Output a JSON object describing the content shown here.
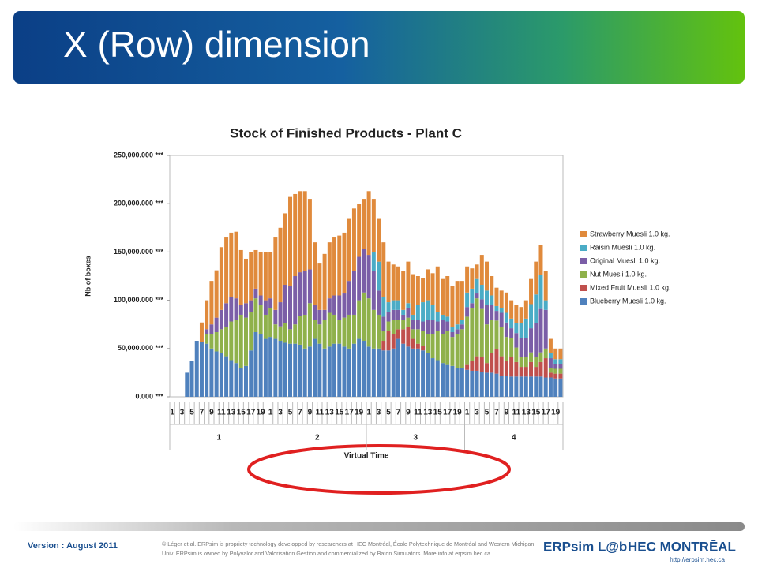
{
  "slide": {
    "title": "X (Row) dimension",
    "version": "Version : August 2011",
    "copyright": [
      "© Léger et al. ERPsim is propriety technology developped by researchers at HEC Montréal, École Polytechnique de Montréal and Western Michigan",
      "Univ. ERPsim is owned by Polyvalor and Valorisation Gestion and commercialized by Baton Simulators. More info at erpsim.hec.ca"
    ],
    "logo_left": "ERPsim L@b",
    "logo_right": "HEC MONTRĒAL",
    "url": "http://erpsim.hec.ca"
  },
  "chart_data": {
    "type": "stacked_bar",
    "title": "Stock of Finished Products - Plant C",
    "x_label": "Virtual Time",
    "y_label": "Nb of boxes",
    "categories": [
      "1",
      null,
      "3",
      null,
      "5",
      null,
      "7",
      null,
      "9",
      null,
      "11",
      null,
      "13",
      null,
      "15",
      null,
      "17",
      null,
      "19",
      null,
      "1",
      null,
      "3",
      null,
      "5",
      null,
      "7",
      null,
      "9",
      null,
      "11",
      null,
      "13",
      null,
      "15",
      null,
      "17",
      null,
      "19",
      null,
      "1",
      null,
      "3",
      null,
      "5",
      null,
      "7",
      null,
      "9",
      null,
      "11",
      null,
      "13",
      null,
      "15",
      null,
      "17",
      null,
      "19",
      null,
      "1",
      null,
      "3",
      null,
      "5",
      null,
      "7",
      null,
      "9",
      null,
      "11",
      null,
      "13",
      null,
      "15",
      null,
      "17",
      null,
      "19",
      null
    ],
    "groups": [
      "1",
      "2",
      "3",
      "4"
    ],
    "ylim": [
      0,
      250000
    ],
    "yticks": [
      {
        "value": 0,
        "label": "0.000 ***"
      },
      {
        "value": 50000,
        "label": "50,000.000 ***"
      },
      {
        "value": 100000,
        "label": "100,000.000 ***"
      },
      {
        "value": 150000,
        "label": "150,000.000 ***"
      },
      {
        "value": 200000,
        "label": "200,000.000 ***"
      },
      {
        "value": 250000,
        "label": "250,000.000 ***"
      }
    ],
    "grid": false,
    "legend": "right",
    "series": [
      {
        "name": "Blueberry Muesli 1.0 kg.",
        "color": "#4f81bd",
        "values": [
          0,
          0,
          0,
          25000,
          37000,
          58000,
          57000,
          55000,
          50000,
          47000,
          45000,
          42000,
          38000,
          35000,
          30000,
          32000,
          48000,
          67000,
          65000,
          60000,
          62000,
          60000,
          58000,
          56000,
          55000,
          55000,
          54000,
          50000,
          52000,
          60000,
          55000,
          50000,
          52000,
          55000,
          55000,
          52000,
          50000,
          55000,
          60000,
          58000,
          52000,
          50000,
          50000,
          48000,
          48000,
          50000,
          60000,
          55000,
          52000,
          50000,
          50000,
          48000,
          45000,
          40000,
          38000,
          35000,
          33000,
          32000,
          30000,
          30000,
          28000,
          27000,
          27000,
          26000,
          25000,
          25000,
          24000,
          22000,
          22000,
          21000,
          21000,
          21000,
          21000,
          21000,
          21000,
          21000,
          20000,
          20000,
          19000,
          19000
        ]
      },
      {
        "name": "Mixed Fruit Muesli 1.0 kg.",
        "color": "#c0504d",
        "values": [
          0,
          0,
          0,
          0,
          0,
          0,
          0,
          0,
          0,
          0,
          0,
          0,
          0,
          0,
          0,
          0,
          0,
          0,
          0,
          0,
          0,
          0,
          0,
          0,
          0,
          0,
          0,
          0,
          0,
          0,
          0,
          0,
          0,
          0,
          0,
          0,
          0,
          0,
          0,
          0,
          0,
          0,
          0,
          10000,
          20000,
          15000,
          10000,
          15000,
          20000,
          10000,
          5000,
          5000,
          0,
          0,
          0,
          0,
          0,
          0,
          0,
          0,
          5000,
          10000,
          15000,
          15000,
          10000,
          20000,
          25000,
          20000,
          15000,
          20000,
          15000,
          10000,
          10000,
          15000,
          10000,
          15000,
          20000,
          5000,
          5000,
          5000
        ]
      },
      {
        "name": "Nut Muesli 1.0 kg.",
        "color": "#8fb14b",
        "values": [
          0,
          0,
          0,
          0,
          0,
          0,
          0,
          10000,
          15000,
          20000,
          25000,
          30000,
          40000,
          45000,
          55000,
          50000,
          40000,
          35000,
          30000,
          25000,
          30000,
          15000,
          15000,
          20000,
          15000,
          20000,
          30000,
          35000,
          45000,
          20000,
          20000,
          30000,
          35000,
          30000,
          25000,
          30000,
          35000,
          30000,
          40000,
          50000,
          50000,
          40000,
          35000,
          10000,
          10000,
          15000,
          10000,
          10000,
          10000,
          10000,
          15000,
          15000,
          20000,
          25000,
          30000,
          30000,
          35000,
          30000,
          35000,
          40000,
          50000,
          55000,
          60000,
          50000,
          40000,
          35000,
          30000,
          30000,
          25000,
          20000,
          15000,
          10000,
          10000,
          10000,
          10000,
          10000,
          10000,
          5000,
          5000,
          5000
        ]
      },
      {
        "name": "Original Muesli 1.0 kg.",
        "color": "#7b5ea7",
        "values": [
          0,
          0,
          0,
          0,
          0,
          0,
          0,
          5000,
          10000,
          15000,
          20000,
          25000,
          25000,
          22000,
          10000,
          15000,
          12000,
          10000,
          10000,
          15000,
          10000,
          15000,
          25000,
          40000,
          45000,
          50000,
          45000,
          45000,
          35000,
          15000,
          15000,
          10000,
          15000,
          20000,
          25000,
          25000,
          35000,
          45000,
          45000,
          45000,
          45000,
          40000,
          25000,
          15000,
          10000,
          10000,
          10000,
          5000,
          10000,
          10000,
          10000,
          10000,
          15000,
          15000,
          10000,
          15000,
          10000,
          5000,
          5000,
          5000,
          10000,
          5000,
          5000,
          10000,
          20000,
          15000,
          10000,
          15000,
          15000,
          10000,
          15000,
          20000,
          20000,
          25000,
          35000,
          45000,
          40000,
          10000,
          5000,
          5000
        ]
      },
      {
        "name": "Raisin Muesli 1.0 kg.",
        "color": "#4bacc6",
        "values": [
          0,
          0,
          0,
          0,
          0,
          0,
          0,
          0,
          0,
          0,
          0,
          0,
          0,
          0,
          0,
          0,
          0,
          0,
          0,
          0,
          0,
          0,
          0,
          0,
          0,
          0,
          0,
          0,
          0,
          0,
          0,
          0,
          0,
          0,
          0,
          0,
          0,
          0,
          0,
          0,
          0,
          20000,
          30000,
          20000,
          10000,
          10000,
          10000,
          5000,
          5000,
          5000,
          15000,
          20000,
          20000,
          15000,
          10000,
          5000,
          5000,
          5000,
          5000,
          5000,
          15000,
          15000,
          15000,
          15000,
          15000,
          10000,
          5000,
          5000,
          10000,
          10000,
          10000,
          15000,
          20000,
          25000,
          30000,
          35000,
          10000,
          5000,
          5000,
          5000
        ]
      },
      {
        "name": "Strawberry Muesli 1.0 kg.",
        "color": "#e08a3c",
        "values": [
          0,
          0,
          0,
          0,
          0,
          0,
          20000,
          30000,
          45000,
          49000,
          65000,
          68000,
          67000,
          69000,
          57000,
          46000,
          50000,
          40000,
          45000,
          50000,
          48000,
          75000,
          77000,
          74000,
          92000,
          85000,
          84000,
          83000,
          73000,
          65000,
          48000,
          58000,
          58000,
          60000,
          62000,
          63000,
          65000,
          65000,
          55000,
          52000,
          66000,
          55000,
          45000,
          57000,
          42000,
          37000,
          35000,
          40000,
          43000,
          42000,
          30000,
          25000,
          32000,
          33000,
          47000,
          37000,
          42000,
          43000,
          45000,
          40000,
          27000,
          21000,
          15000,
          31000,
          30000,
          20000,
          19000,
          18000,
          21000,
          19000,
          19000,
          17000,
          19000,
          26000,
          34000,
          31000,
          30000,
          15000,
          11000,
          11000
        ]
      }
    ]
  }
}
